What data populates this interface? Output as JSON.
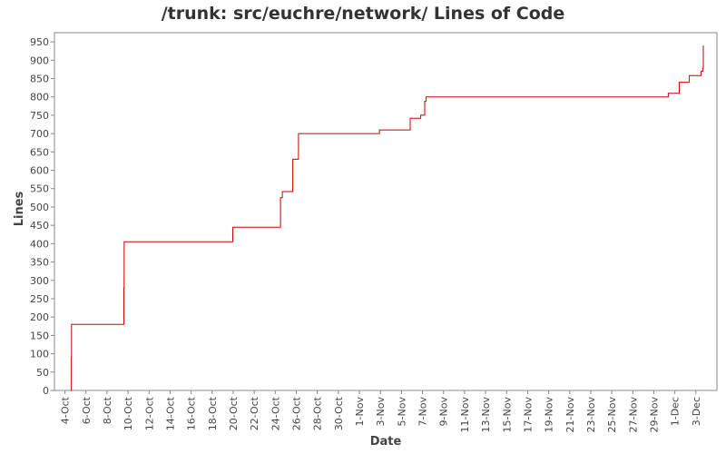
{
  "chart_data": {
    "type": "line",
    "title": "/trunk: src/euchre/network/ Lines of Code",
    "xlabel": "Date",
    "ylabel": "Lines",
    "ylim": [
      0,
      975
    ],
    "xlim": [
      "2010-10-03",
      "2010-12-05"
    ],
    "grid": false,
    "legend": "none",
    "line_color": "#cc0000",
    "y_ticks": [
      0,
      50,
      100,
      150,
      200,
      250,
      300,
      350,
      400,
      450,
      500,
      550,
      600,
      650,
      700,
      750,
      800,
      850,
      900,
      950
    ],
    "x_ticks": [
      {
        "date": "2010-10-04",
        "label": "4-Oct"
      },
      {
        "date": "2010-10-06",
        "label": "6-Oct"
      },
      {
        "date": "2010-10-08",
        "label": "8-Oct"
      },
      {
        "date": "2010-10-10",
        "label": "10-Oct"
      },
      {
        "date": "2010-10-12",
        "label": "12-Oct"
      },
      {
        "date": "2010-10-14",
        "label": "14-Oct"
      },
      {
        "date": "2010-10-16",
        "label": "16-Oct"
      },
      {
        "date": "2010-10-18",
        "label": "18-Oct"
      },
      {
        "date": "2010-10-20",
        "label": "20-Oct"
      },
      {
        "date": "2010-10-22",
        "label": "22-Oct"
      },
      {
        "date": "2010-10-24",
        "label": "24-Oct"
      },
      {
        "date": "2010-10-26",
        "label": "26-Oct"
      },
      {
        "date": "2010-10-28",
        "label": "28-Oct"
      },
      {
        "date": "2010-10-30",
        "label": "30-Oct"
      },
      {
        "date": "2010-11-01",
        "label": "1-Nov"
      },
      {
        "date": "2010-11-03",
        "label": "3-Nov"
      },
      {
        "date": "2010-11-05",
        "label": "5-Nov"
      },
      {
        "date": "2010-11-07",
        "label": "7-Nov"
      },
      {
        "date": "2010-11-09",
        "label": "9-Nov"
      },
      {
        "date": "2010-11-11",
        "label": "11-Nov"
      },
      {
        "date": "2010-11-13",
        "label": "13-Nov"
      },
      {
        "date": "2010-11-15",
        "label": "15-Nov"
      },
      {
        "date": "2010-11-17",
        "label": "17-Nov"
      },
      {
        "date": "2010-11-19",
        "label": "19-Nov"
      },
      {
        "date": "2010-11-21",
        "label": "21-Nov"
      },
      {
        "date": "2010-11-23",
        "label": "23-Nov"
      },
      {
        "date": "2010-11-25",
        "label": "25-Nov"
      },
      {
        "date": "2010-11-27",
        "label": "27-Nov"
      },
      {
        "date": "2010-11-29",
        "label": "29-Nov"
      },
      {
        "date": "2010-12-01",
        "label": "1-Dec"
      },
      {
        "date": "2010-12-03",
        "label": "3-Dec"
      }
    ],
    "series": [
      {
        "x": [
          "2010-10-04 14:00",
          "2010-10-04 14:30",
          "2010-10-04 15:00",
          "2010-10-09 14:00",
          "2010-10-09 14:30",
          "2010-10-09 15:00",
          "2010-10-19 23:00",
          "2010-10-20 05:00",
          "2010-10-20 16:00",
          "2010-10-24 06:00",
          "2010-10-24 12:00",
          "2010-10-24 16:00",
          "2010-10-25 03:00",
          "2010-10-25 16:00",
          "2010-10-26 05:00",
          "2010-10-30 18:00",
          "2010-11-02 22:00",
          "2010-11-05 20:00",
          "2010-11-06 20:00",
          "2010-11-07 02:00",
          "2010-11-07 05:00",
          "2010-11-07 08:00",
          "2010-11-30 09:00",
          "2010-12-01 10:00",
          "2010-12-02 09:00",
          "2010-12-02 21:00",
          "2010-12-03 12:00",
          "2010-12-03 15:00",
          "2010-12-03 16:00",
          "2010-12-03 17:00"
        ],
        "y": [
          0,
          90,
          180,
          180,
          280,
          405,
          445,
          445,
          445,
          445,
          525,
          542,
          542,
          630,
          700,
          700,
          710,
          742,
          750,
          750,
          788,
          800,
          810,
          840,
          858,
          858,
          870,
          870,
          878,
          940
        ]
      }
    ]
  }
}
